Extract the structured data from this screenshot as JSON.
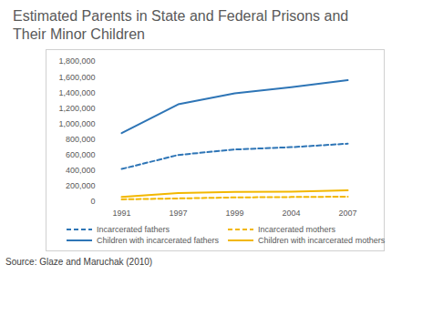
{
  "chart_data": {
    "type": "line",
    "title": "Estimated Parents in State and Federal Prisons and Their Minor Children",
    "source": "Source: Glaze and Maruchak (2010)",
    "categories": [
      "1991",
      "1997",
      "1999",
      "2004",
      "2007"
    ],
    "series": [
      {
        "name": "Incarcerated fathers",
        "color": "#2e75b6",
        "line_style": "dashed",
        "values": [
          420000,
          600000,
          670000,
          700000,
          745000
        ]
      },
      {
        "name": "Incarcerated mothers",
        "color": "#f2b700",
        "line_style": "dashed",
        "values": [
          30000,
          42000,
          55000,
          60000,
          65000
        ]
      },
      {
        "name": "Children with incarcerated fathers",
        "color": "#2e75b6",
        "line_style": "solid",
        "values": [
          880000,
          1250000,
          1390000,
          1470000,
          1560000
        ]
      },
      {
        "name": "Children with incarcerated mothers",
        "color": "#f2b700",
        "line_style": "solid",
        "values": [
          60000,
          110000,
          125000,
          130000,
          147000
        ]
      }
    ],
    "ylim": [
      0,
      1800000
    ],
    "yticks": [
      0,
      {
        "value": 200000,
        "label": "200,000"
      },
      {
        "value": 400000,
        "label": "400,000"
      },
      {
        "value": 600000,
        "label": "600,000"
      },
      {
        "value": 800000,
        "label": "800,000"
      },
      {
        "value": 1000000,
        "label": "1,000,000"
      },
      {
        "value": 1200000,
        "label": "1,200,000"
      },
      {
        "value": 1400000,
        "label": "1,400,000"
      },
      {
        "value": 1600000,
        "label": "1,600,000"
      },
      {
        "value": 1800000,
        "label": "1,800,000"
      }
    ],
    "grid": false,
    "legend": "bottom"
  }
}
